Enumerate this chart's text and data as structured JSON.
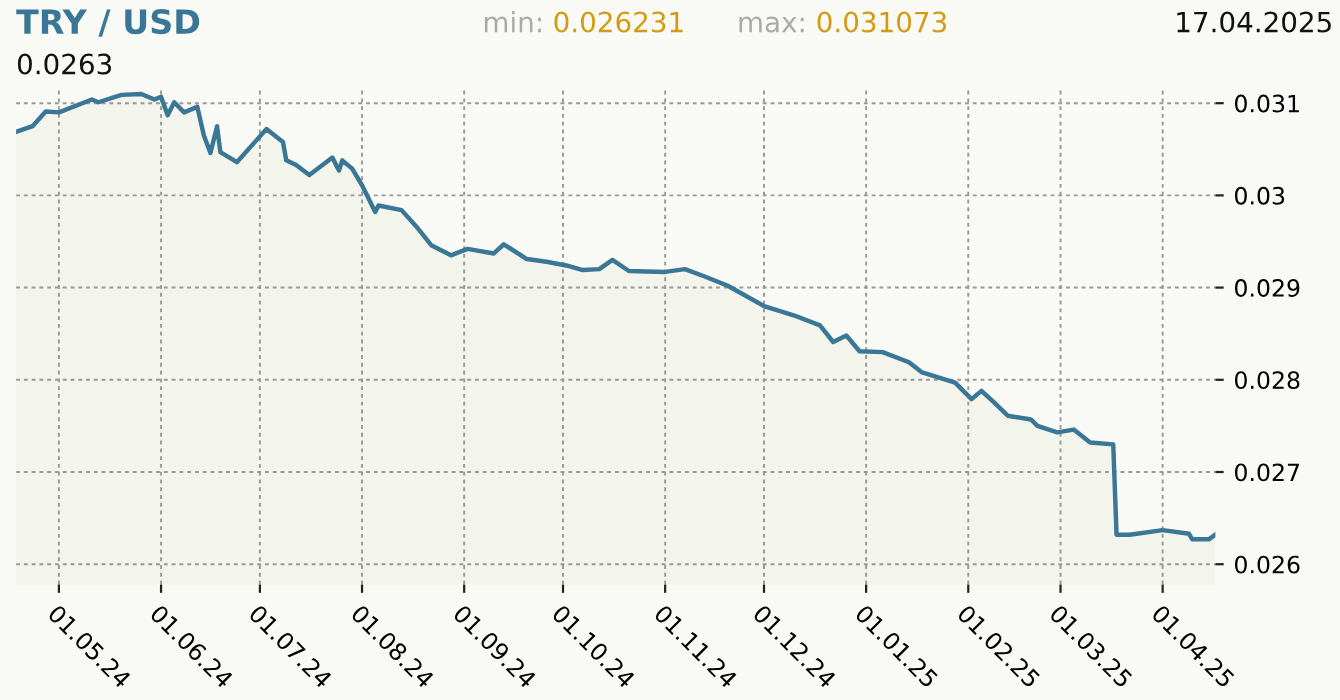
{
  "chart_data": {
    "type": "area",
    "title": "TRY / USD",
    "annotations": [
      "0.0263",
      "min: 0.026231",
      "max: 0.031073",
      "17.04.2025"
    ],
    "x": [
      "2024-04-18",
      "2024-04-23",
      "2024-04-27",
      "2024-05-01",
      "2024-05-11",
      "2024-05-13",
      "2024-05-20",
      "2024-05-26",
      "2024-05-30",
      "2024-06-01",
      "2024-06-03",
      "2024-06-05",
      "2024-06-08",
      "2024-06-12",
      "2024-06-14",
      "2024-06-16",
      "2024-06-18",
      "2024-06-19",
      "2024-06-24",
      "2024-07-01",
      "2024-07-03",
      "2024-07-08",
      "2024-07-09",
      "2024-07-12",
      "2024-07-16",
      "2024-07-23",
      "2024-07-25",
      "2024-07-26",
      "2024-07-29",
      "2024-08-01",
      "2024-08-05",
      "2024-08-06",
      "2024-08-13",
      "2024-08-18",
      "2024-08-22",
      "2024-08-28",
      "2024-09-02",
      "2024-09-10",
      "2024-09-13",
      "2024-09-20",
      "2024-09-26",
      "2024-10-02",
      "2024-10-07",
      "2024-10-12",
      "2024-10-16",
      "2024-10-21",
      "2024-11-01",
      "2024-11-07",
      "2024-11-13",
      "2024-11-20",
      "2024-12-01",
      "2024-12-10",
      "2024-12-18",
      "2024-12-22",
      "2024-12-26",
      "2024-12-30",
      "2025-01-06",
      "2025-01-14",
      "2025-01-18",
      "2025-01-28",
      "2025-02-02",
      "2025-02-05",
      "2025-02-09",
      "2025-02-13",
      "2025-02-20",
      "2025-02-22",
      "2025-02-28",
      "2025-03-05",
      "2025-03-10",
      "2025-03-17",
      "2025-03-18",
      "2025-03-22",
      "2025-04-01",
      "2025-04-09",
      "2025-04-10",
      "2025-04-15",
      "2025-04-17"
    ],
    "series": [
      {
        "color": "#3a7796",
        "values": [
          0.03069,
          0.03075,
          0.03091,
          0.0309,
          0.03104,
          0.03101,
          0.03109,
          0.0311,
          0.03104,
          0.03107,
          0.03087,
          0.03101,
          0.0309,
          0.03096,
          0.03065,
          0.03046,
          0.03075,
          0.03047,
          0.03036,
          0.03064,
          0.03072,
          0.03058,
          0.03038,
          0.03033,
          0.03022,
          0.03041,
          0.03027,
          0.03038,
          0.03029,
          0.03011,
          0.02982,
          0.02989,
          0.02984,
          0.02964,
          0.02946,
          0.02935,
          0.02942,
          0.02937,
          0.02947,
          0.02931,
          0.02928,
          0.02924,
          0.02919,
          0.0292,
          0.0293,
          0.02918,
          0.02917,
          0.0292,
          0.02912,
          0.02902,
          0.0288,
          0.0287,
          0.02859,
          0.02841,
          0.02848,
          0.02831,
          0.0283,
          0.02819,
          0.02808,
          0.02797,
          0.02779,
          0.02788,
          0.02775,
          0.02761,
          0.02757,
          0.0275,
          0.02743,
          0.02746,
          0.02732,
          0.0273,
          0.02632,
          0.02632,
          0.02637,
          0.02633,
          0.02627,
          0.02627,
          0.02632
        ]
      }
    ],
    "xlim": [
      "2024-04-18",
      "2025-04-17"
    ],
    "xticks": [
      {
        "value": "2024-05-01",
        "label": "01.05.24"
      },
      {
        "value": "2024-06-01",
        "label": "01.06.24"
      },
      {
        "value": "2024-07-01",
        "label": "01.07.24"
      },
      {
        "value": "2024-08-01",
        "label": "01.08.24"
      },
      {
        "value": "2024-09-01",
        "label": "01.09.24"
      },
      {
        "value": "2024-10-01",
        "label": "01.10.24"
      },
      {
        "value": "2024-11-01",
        "label": "01.11.24"
      },
      {
        "value": "2024-12-01",
        "label": "01.12.24"
      },
      {
        "value": "2025-01-01",
        "label": "01.01.25"
      },
      {
        "value": "2025-02-01",
        "label": "01.02.25"
      },
      {
        "value": "2025-03-01",
        "label": "01.03.25"
      },
      {
        "value": "2025-04-01",
        "label": "01.04.25"
      }
    ],
    "ylim": [
      0.02578,
      0.03117
    ],
    "yticks": [
      0.026,
      0.027,
      0.028,
      0.029,
      0.03,
      0.031
    ],
    "grid": true,
    "line_style": "solid"
  }
}
